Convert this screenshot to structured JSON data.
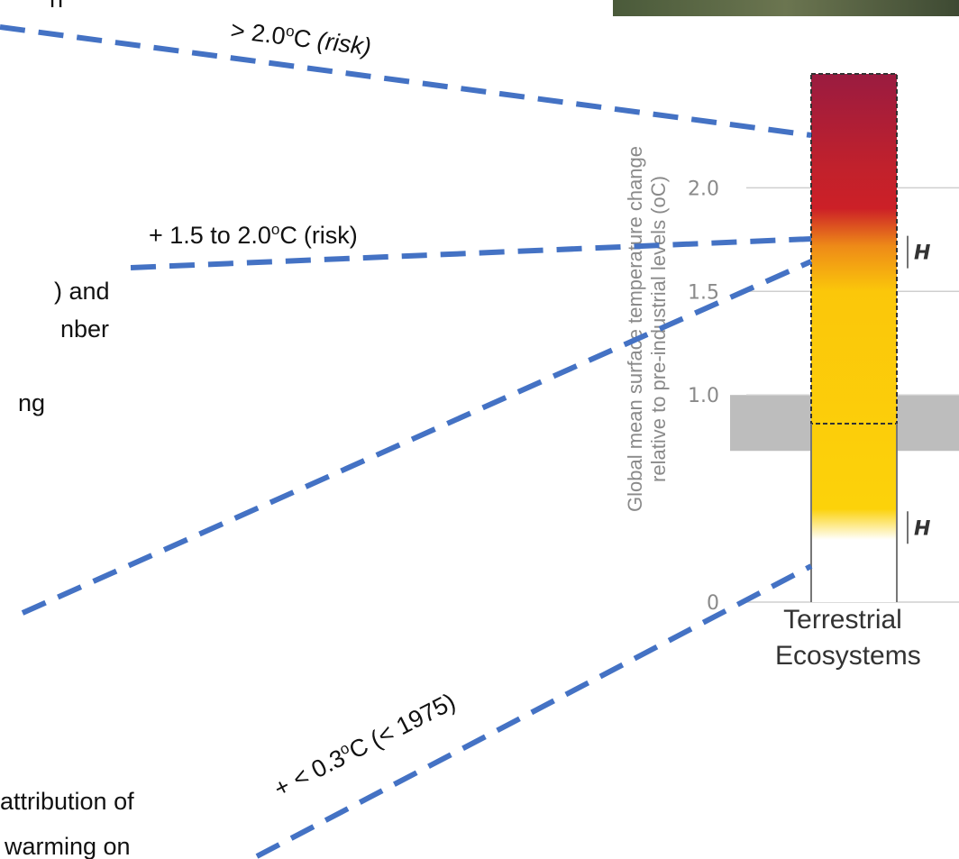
{
  "text_fragments": [
    "n",
    ") and",
    "nber",
    "ng",
    "attribution of",
    "warming on"
  ],
  "annotations": [
    {
      "before": "> 2.0",
      "sup": "o",
      "after": "C",
      "note": "(risk)"
    },
    {
      "before": "+ 1.5 to 2.0",
      "sup": "o",
      "after": "C",
      "note": "(risk)"
    },
    {
      "before": "+ < 0.3",
      "sup": "o",
      "after": "C",
      "note": "(< 1975)"
    }
  ],
  "chart_data": {
    "type": "ember",
    "ylabel": [
      "Global mean surface temperature change",
      "relative to pre-industrial levels (oC)"
    ],
    "categories": [
      "Terrestrial Ecosystems"
    ],
    "ylim": [
      0,
      2.55
    ],
    "yticks": [
      0,
      {
        "value": 1,
        "label": "1.0"
      },
      {
        "value": 1.5,
        "label": "1.5"
      },
      {
        "value": 2,
        "label": "2.0"
      }
    ],
    "grid": true,
    "band": [
      0.73,
      1.0
    ],
    "band_color": "#bdbdbd",
    "embers": [
      {
        "value": 0.3,
        "color": "#ffffff"
      },
      {
        "value": 0.45,
        "color": "#fcd20a"
      },
      {
        "value": 1.5,
        "color": "#fbc70a"
      },
      {
        "value": 1.72,
        "color": "#ee8a18"
      },
      {
        "value": 1.9,
        "color": "#cc2027"
      },
      {
        "value": 2.1,
        "color": "#c1212c"
      },
      {
        "value": 2.55,
        "color": "#9a1b40"
      }
    ],
    "confidence": [
      {
        "value": 1.69,
        "label": "H"
      },
      {
        "value": 0.36,
        "label": "H"
      }
    ]
  }
}
